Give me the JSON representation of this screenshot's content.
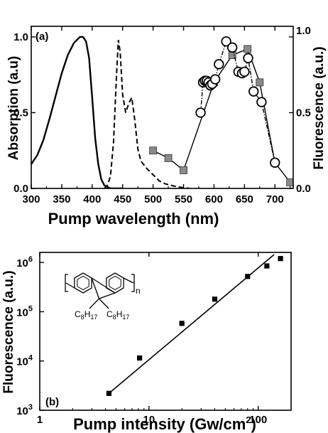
{
  "chart_data": [
    {
      "panel": "(a)",
      "type": "line",
      "xlabel": "Pump wavelength (nm)",
      "ylabel": "Absorption (a.u)",
      "y2label": "Fluorescence (a.u.)",
      "xlim": [
        300,
        730
      ],
      "ylim": [
        0,
        1.07
      ],
      "xticks": [
        "300",
        "350",
        "400",
        "450",
        "500",
        "550",
        "600",
        "650",
        "700"
      ],
      "yticks": [
        "0.0",
        "0.5",
        "1.0"
      ],
      "y2ticks": [
        "0.0",
        "0.5",
        "1.0"
      ],
      "series": [
        {
          "style": "solid",
          "axis": "left",
          "x": [
            300,
            310,
            320,
            330,
            340,
            350,
            360,
            370,
            380,
            385,
            390,
            395,
            400,
            405,
            410,
            415,
            420,
            425,
            430,
            440,
            450
          ],
          "y": [
            0.16,
            0.22,
            0.32,
            0.46,
            0.61,
            0.76,
            0.88,
            0.96,
            1.0,
            1.0,
            0.97,
            0.86,
            0.6,
            0.33,
            0.16,
            0.06,
            0.02,
            0.01,
            0.0,
            0.0,
            0.0
          ]
        },
        {
          "style": "dashed",
          "axis": "left",
          "x": [
            420,
            425,
            430,
            435,
            440,
            443,
            446,
            450,
            455,
            460,
            465,
            470,
            475,
            480,
            490,
            500,
            510,
            520,
            540,
            560
          ],
          "y": [
            0.0,
            0.02,
            0.08,
            0.3,
            0.75,
            0.98,
            0.9,
            0.62,
            0.5,
            0.56,
            0.6,
            0.45,
            0.26,
            0.18,
            0.13,
            0.09,
            0.05,
            0.03,
            0.01,
            0.0
          ]
        },
        {
          "style": "line-squares",
          "axis": "right",
          "x": [
            500,
            525,
            550,
            600,
            630,
            655,
            675,
            700,
            725
          ],
          "y": [
            0.25,
            0.2,
            0.12,
            0.7,
            0.88,
            0.92,
            0.7,
            0.17,
            0.04
          ]
        },
        {
          "style": "line-circles",
          "axis": "right",
          "x": [
            578,
            582,
            585,
            588,
            591,
            594,
            597,
            602,
            608,
            620,
            630,
            640,
            646,
            650,
            656,
            665,
            678,
            700
          ],
          "y": [
            0.5,
            0.7,
            0.71,
            0.71,
            0.7,
            0.68,
            0.69,
            0.72,
            0.82,
            0.97,
            0.93,
            0.77,
            0.76,
            0.77,
            0.86,
            0.64,
            0.57,
            0.17
          ]
        }
      ]
    },
    {
      "panel": "(b)",
      "type": "scatter",
      "xlabel": "Pump intensity (Gw/cm",
      "xlabel_sup": "2",
      "xlabel_end": ")",
      "ylabel": "Fluorescence (a.u.)",
      "xscale": "log",
      "yscale": "log",
      "xlim": [
        1,
        200
      ],
      "ylim": [
        1000,
        1600000
      ],
      "xticks": [
        {
          "label": "1",
          "value": 1
        },
        {
          "label": "10",
          "value": 10
        },
        {
          "label": "100",
          "value": 100
        }
      ],
      "yticks": [
        {
          "base": "10",
          "exp": "3",
          "value": 1000
        },
        {
          "base": "10",
          "exp": "4",
          "value": 10000
        },
        {
          "base": "10",
          "exp": "5",
          "value": 100000
        },
        {
          "base": "10",
          "exp": "6",
          "value": 1000000
        }
      ],
      "points": {
        "x": [
          4.3,
          8.2,
          20,
          40,
          80,
          120,
          160
        ],
        "y": [
          2200,
          11500,
          58000,
          180000,
          520000,
          850000,
          1200000
        ]
      },
      "fit_line": {
        "x": [
          4.5,
          140
        ],
        "y": [
          2400,
          1450000
        ]
      },
      "chemical_labels": [
        "C",
        "8",
        "H",
        "17",
        "C",
        "8",
        "H",
        "17",
        "n"
      ]
    }
  ]
}
